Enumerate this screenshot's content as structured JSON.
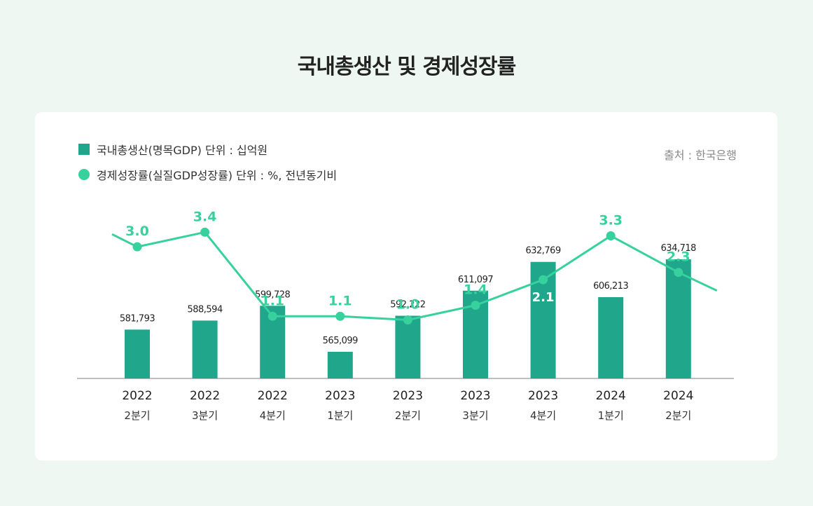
{
  "title": "국내총생산 및 경제성장률",
  "source": "출처 : 한국은행",
  "colors": {
    "bar": "#1fa68b",
    "line": "#36d19d",
    "axis": "#aaaaaa",
    "line_label": "#36d19d",
    "inner_label": "#ffffff"
  },
  "chart_data": {
    "type": "bar",
    "title": "국내총생산 및 경제성장률",
    "categories": [
      {
        "year": "2022",
        "quarter": "2분기"
      },
      {
        "year": "2022",
        "quarter": "3분기"
      },
      {
        "year": "2022",
        "quarter": "4분기"
      },
      {
        "year": "2023",
        "quarter": "1분기"
      },
      {
        "year": "2023",
        "quarter": "2분기"
      },
      {
        "year": "2023",
        "quarter": "3분기"
      },
      {
        "year": "2023",
        "quarter": "4분기"
      },
      {
        "year": "2024",
        "quarter": "1분기"
      },
      {
        "year": "2024",
        "quarter": "2분기"
      }
    ],
    "series": [
      {
        "name": "국내총생산(명목GDP) 단위 :  십억원",
        "type": "bar",
        "values": [
          581793,
          588594,
          599728,
          565099,
          592222,
          611097,
          632769,
          606213,
          634718
        ],
        "labels": [
          "581,793",
          "588,594",
          "599,728",
          "565,099",
          "592,222",
          "611,097",
          "632,769",
          "606,213",
          "634,718"
        ]
      },
      {
        "name": "경제성장률(실질GDP성장률) 단위 :  %, 전년동기비",
        "type": "line",
        "values": [
          3.0,
          3.4,
          1.1,
          1.1,
          1.0,
          1.4,
          2.1,
          3.3,
          2.3
        ],
        "labels": [
          "3.0",
          "3.4",
          "1.1",
          "1.1",
          "1.0",
          "1.4",
          "2.1",
          "3.3",
          "2.3"
        ]
      }
    ],
    "bar_ylim": [
      545000,
      640000
    ],
    "line_ylim": [
      -0.6,
      4.0
    ],
    "legend_position": "top-left",
    "grid": false
  }
}
